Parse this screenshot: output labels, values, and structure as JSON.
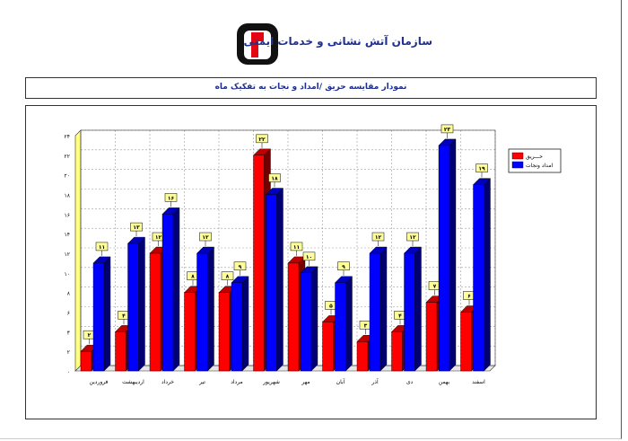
{
  "header": {
    "org_title": "سازمان آتش نشانی و خدمات ایمنی",
    "logo_icon": "fire-department-logo-icon"
  },
  "chart_title": "نمودار مقایسه حریق /امداد و نجات به تفکیک ماه",
  "colors": {
    "fire": "#ff0000",
    "rescue": "#0000ff",
    "label_bg": "#ffff99",
    "wall": "#ffff80",
    "title_text": "#1f2f8f"
  },
  "chart_data": {
    "type": "bar",
    "categories": [
      "فروردین",
      "اردیبهشت",
      "خرداد",
      "تیر",
      "مرداد",
      "شهریور",
      "مهر",
      "آبان",
      "آذر",
      "دی",
      "بهمن",
      "اسفند"
    ],
    "series": [
      {
        "name": "حـــریق",
        "values": [
          2,
          4,
          12,
          8,
          8,
          22,
          11,
          5,
          3,
          4,
          7,
          6
        ],
        "labels": [
          "۲",
          "۴",
          "۱۲",
          "۸",
          "۸",
          "۲۲",
          "۱۱",
          "۵",
          "۳",
          "۴",
          "۷",
          "۶"
        ]
      },
      {
        "name": "امداد ونجات",
        "values": [
          11,
          13,
          16,
          12,
          9,
          18,
          10,
          9,
          12,
          12,
          23,
          19
        ],
        "labels": [
          "۱۱",
          "۱۳",
          "۱۶",
          "۱۲",
          "۹",
          "۱۸",
          "۱۰",
          "۹",
          "۱۲",
          "۱۲",
          "۲۳",
          "۱۹"
        ]
      }
    ],
    "ylim": [
      0,
      24
    ],
    "y_ticks": [
      0,
      2,
      4,
      6,
      8,
      10,
      12,
      14,
      16,
      18,
      20,
      22,
      24
    ],
    "y_tick_labels": [
      "۰",
      "۲",
      "۴",
      "۶",
      "۸",
      "۱۰",
      "۱۲",
      "۱۴",
      "۱۶",
      "۱۸",
      "۲۰",
      "۲۲",
      "۲۴"
    ],
    "grid": true,
    "legend": "right",
    "three_d": true
  }
}
